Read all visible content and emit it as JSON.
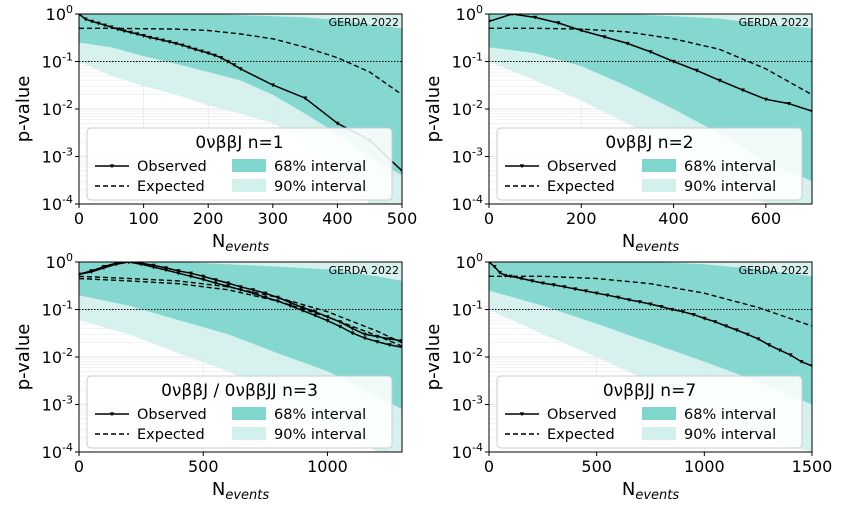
{
  "colors": {
    "band68": "#7fd6cc",
    "band90": "#d3f1ec",
    "observed": "#000000",
    "expected": "#000000",
    "threshold": "#000000"
  },
  "chart_data": [
    {
      "type": "line",
      "title": "",
      "label": "GERDA 2022",
      "legend_title": "0νββJ n=1",
      "xlabel": "N",
      "xlabel_sub": "events",
      "ylabel": "p-value",
      "xlim": [
        0,
        500
      ],
      "ylim": [
        0.0001,
        1
      ],
      "yscale": "log",
      "xticks": [
        "0",
        "100",
        "200",
        "300",
        "400",
        "500"
      ],
      "xtick_values": [
        0,
        100,
        200,
        300,
        400,
        500
      ],
      "yticks": [
        "10",
        "10",
        "10",
        "10",
        "10"
      ],
      "ytick_exponents": [
        "0",
        "-1",
        "-2",
        "-3",
        "-4"
      ],
      "threshold": 0.1,
      "legend": {
        "observed": "Observed",
        "expected": "Expected",
        "band68": "68% interval",
        "band90": "90% interval"
      },
      "observed": {
        "x": [
          0,
          10,
          20,
          30,
          40,
          50,
          60,
          70,
          80,
          90,
          100,
          110,
          120,
          130,
          140,
          150,
          160,
          170,
          180,
          190,
          200,
          210,
          220,
          230,
          240,
          250,
          300,
          350,
          400,
          450,
          500
        ],
        "y": [
          1.0,
          0.78,
          0.7,
          0.64,
          0.58,
          0.53,
          0.48,
          0.44,
          0.41,
          0.38,
          0.35,
          0.32,
          0.3,
          0.28,
          0.26,
          0.24,
          0.22,
          0.2,
          0.18,
          0.165,
          0.15,
          0.135,
          0.12,
          0.1,
          0.085,
          0.07,
          0.032,
          0.017,
          0.005,
          0.0022,
          0.0005
        ]
      },
      "expected": {
        "x": [
          0,
          50,
          100,
          150,
          200,
          250,
          300,
          350,
          400,
          450,
          500
        ],
        "y": [
          0.5,
          0.5,
          0.49,
          0.48,
          0.45,
          0.38,
          0.3,
          0.2,
          0.12,
          0.06,
          0.02
        ]
      },
      "band68": {
        "x": [
          0,
          50,
          100,
          150,
          200,
          250,
          300,
          350,
          400,
          450,
          500
        ],
        "upper": [
          1.0,
          1.0,
          1.0,
          1.0,
          1.0,
          0.95,
          0.9,
          0.85,
          0.75,
          0.6,
          0.5
        ],
        "lower": [
          0.25,
          0.2,
          0.13,
          0.09,
          0.06,
          0.04,
          0.02,
          0.008,
          0.003,
          0.001,
          0.0004
        ]
      },
      "band90": {
        "x": [
          0,
          50,
          100,
          150,
          200,
          250,
          300,
          350,
          400,
          450,
          500
        ],
        "upper": [
          1.0,
          1.0,
          1.0,
          1.0,
          1.0,
          1.0,
          1.0,
          1.0,
          1.0,
          1.0,
          1.0
        ],
        "lower": [
          0.1,
          0.05,
          0.03,
          0.02,
          0.012,
          0.008,
          0.005,
          0.002,
          0.0005,
          0.0001,
          0.0001
        ]
      }
    },
    {
      "type": "line",
      "title": "",
      "label": "GERDA 2022",
      "legend_title": "0νββJ n=2",
      "xlabel": "N",
      "xlabel_sub": "events",
      "ylabel": "p-value",
      "xlim": [
        0,
        700
      ],
      "ylim": [
        0.0001,
        1
      ],
      "yscale": "log",
      "xticks": [
        "0",
        "200",
        "400",
        "600"
      ],
      "xtick_values": [
        0,
        200,
        400,
        600
      ],
      "yticks": [
        "10",
        "10",
        "10",
        "10",
        "10"
      ],
      "ytick_exponents": [
        "0",
        "-1",
        "-2",
        "-3",
        "-4"
      ],
      "threshold": 0.1,
      "legend": {
        "observed": "Observed",
        "expected": "Expected",
        "band68": "68% interval",
        "band90": "90% interval"
      },
      "observed": {
        "x": [
          0,
          50,
          100,
          150,
          200,
          250,
          300,
          350,
          400,
          450,
          500,
          550,
          600,
          650,
          700
        ],
        "y": [
          0.7,
          1.0,
          0.85,
          0.65,
          0.45,
          0.33,
          0.24,
          0.16,
          0.1,
          0.065,
          0.04,
          0.025,
          0.016,
          0.013,
          0.009
        ]
      },
      "expected": {
        "x": [
          0,
          100,
          200,
          300,
          400,
          500,
          600,
          700
        ],
        "y": [
          0.5,
          0.5,
          0.48,
          0.42,
          0.3,
          0.18,
          0.07,
          0.02
        ]
      },
      "band68": {
        "x": [
          0,
          100,
          200,
          300,
          400,
          500,
          600,
          700
        ],
        "upper": [
          1.0,
          1.0,
          1.0,
          1.0,
          0.9,
          0.8,
          0.6,
          0.5
        ],
        "lower": [
          0.2,
          0.15,
          0.08,
          0.03,
          0.01,
          0.003,
          0.0008,
          0.0003
        ]
      },
      "band90": {
        "x": [
          0,
          100,
          200,
          300,
          400,
          500,
          600,
          700
        ],
        "upper": [
          1.0,
          1.0,
          1.0,
          1.0,
          1.0,
          1.0,
          1.0,
          1.0
        ],
        "lower": [
          0.1,
          0.04,
          0.015,
          0.005,
          0.0015,
          0.0004,
          0.0001,
          0.0001
        ]
      }
    },
    {
      "type": "line",
      "title": "",
      "label": "GERDA 2022",
      "legend_title": "0νββJ / 0νββJJ n=3",
      "xlabel": "N",
      "xlabel_sub": "events",
      "ylabel": "p-value",
      "xlim": [
        0,
        1300
      ],
      "ylim": [
        0.0001,
        1
      ],
      "yscale": "log",
      "xticks": [
        "0",
        "500",
        "1000"
      ],
      "xtick_values": [
        0,
        500,
        1000
      ],
      "yticks": [
        "10",
        "10",
        "10",
        "10",
        "10"
      ],
      "ytick_exponents": [
        "0",
        "-1",
        "-2",
        "-3",
        "-4"
      ],
      "threshold": 0.1,
      "legend": {
        "observed": "Observed",
        "expected": "Expected",
        "band68": "68% interval",
        "band90": "90% interval"
      },
      "observed": [
        {
          "x": [
            0,
            50,
            100,
            150,
            200,
            250,
            300,
            350,
            400,
            450,
            500,
            550,
            600,
            650,
            700,
            750,
            800,
            850,
            900,
            950,
            1000,
            1050,
            1100,
            1150,
            1200,
            1250,
            1300
          ],
          "y": [
            0.55,
            0.65,
            0.8,
            0.95,
            1.0,
            0.95,
            0.85,
            0.75,
            0.65,
            0.58,
            0.5,
            0.42,
            0.36,
            0.3,
            0.26,
            0.22,
            0.18,
            0.14,
            0.11,
            0.09,
            0.07,
            0.055,
            0.04,
            0.03,
            0.027,
            0.024,
            0.022
          ]
        },
        {
          "x": [
            0,
            50,
            100,
            150,
            200,
            250,
            300,
            350,
            400,
            450,
            500,
            550,
            600,
            650,
            700,
            750,
            800,
            850,
            900,
            950,
            1000,
            1050,
            1100,
            1150,
            1200,
            1250,
            1300
          ],
          "y": [
            0.55,
            0.62,
            0.75,
            0.9,
            1.0,
            0.9,
            0.78,
            0.68,
            0.58,
            0.5,
            0.43,
            0.36,
            0.31,
            0.26,
            0.22,
            0.18,
            0.15,
            0.12,
            0.095,
            0.075,
            0.058,
            0.044,
            0.032,
            0.025,
            0.021,
            0.018,
            0.016
          ]
        }
      ],
      "expected": [
        {
          "x": [
            0,
            200,
            400,
            600,
            800,
            1000,
            1200,
            1300
          ],
          "y": [
            0.5,
            0.45,
            0.4,
            0.3,
            0.18,
            0.09,
            0.035,
            0.02
          ]
        },
        {
          "x": [
            0,
            200,
            400,
            600,
            800,
            1000,
            1200,
            1300
          ],
          "y": [
            0.45,
            0.4,
            0.35,
            0.26,
            0.15,
            0.07,
            0.028,
            0.017
          ]
        }
      ],
      "band68": {
        "x": [
          0,
          200,
          400,
          600,
          800,
          1000,
          1200,
          1300
        ],
        "upper": [
          1.0,
          1.0,
          1.0,
          0.9,
          0.8,
          0.7,
          0.5,
          0.4
        ],
        "lower": [
          0.2,
          0.12,
          0.06,
          0.03,
          0.012,
          0.005,
          0.0015,
          0.0008
        ]
      },
      "band90": {
        "x": [
          0,
          200,
          400,
          600,
          800,
          1000,
          1200,
          1300
        ],
        "upper": [
          1.0,
          1.0,
          1.0,
          1.0,
          1.0,
          1.0,
          1.0,
          1.0
        ],
        "lower": [
          0.06,
          0.03,
          0.012,
          0.005,
          0.0015,
          0.0004,
          0.0001,
          0.0001
        ]
      }
    },
    {
      "type": "line",
      "title": "",
      "label": "GERDA 2022",
      "legend_title": "0νββJJ n=7",
      "xlabel": "N",
      "xlabel_sub": "events",
      "ylabel": "p-value",
      "xlim": [
        0,
        1500
      ],
      "ylim": [
        0.0001,
        1
      ],
      "yscale": "log",
      "xticks": [
        "0",
        "500",
        "1000",
        "1500"
      ],
      "xtick_values": [
        0,
        500,
        1000,
        1500
      ],
      "yticks": [
        "10",
        "10",
        "10",
        "10",
        "10"
      ],
      "ytick_exponents": [
        "0",
        "-1",
        "-2",
        "-3",
        "-4"
      ],
      "threshold": 0.1,
      "legend": {
        "observed": "Observed",
        "expected": "Expected",
        "band68": "68% interval",
        "band90": "90% interval"
      },
      "observed": {
        "x": [
          0,
          25,
          50,
          75,
          100,
          150,
          200,
          250,
          300,
          350,
          400,
          450,
          500,
          550,
          600,
          650,
          700,
          750,
          800,
          850,
          900,
          950,
          1000,
          1050,
          1100,
          1150,
          1200,
          1250,
          1300,
          1350,
          1400,
          1450,
          1500
        ],
        "y": [
          1.0,
          0.8,
          0.6,
          0.52,
          0.5,
          0.45,
          0.4,
          0.36,
          0.33,
          0.3,
          0.27,
          0.245,
          0.22,
          0.2,
          0.18,
          0.16,
          0.145,
          0.13,
          0.115,
          0.1,
          0.09,
          0.078,
          0.065,
          0.055,
          0.045,
          0.037,
          0.03,
          0.024,
          0.018,
          0.014,
          0.011,
          0.008,
          0.0065
        ]
      },
      "expected": {
        "x": [
          0,
          250,
          500,
          750,
          1000,
          1250,
          1500
        ],
        "y": [
          0.5,
          0.5,
          0.45,
          0.35,
          0.22,
          0.11,
          0.045
        ]
      },
      "band68": {
        "x": [
          0,
          250,
          500,
          750,
          1000,
          1250,
          1500
        ],
        "upper": [
          1.0,
          1.0,
          1.0,
          1.0,
          0.9,
          0.7,
          0.5
        ],
        "lower": [
          0.25,
          0.12,
          0.05,
          0.02,
          0.008,
          0.003,
          0.001
        ]
      },
      "band90": {
        "x": [
          0,
          250,
          500,
          750,
          1000,
          1250,
          1500
        ],
        "upper": [
          1.0,
          1.0,
          1.0,
          1.0,
          1.0,
          1.0,
          1.0
        ],
        "lower": [
          0.1,
          0.03,
          0.01,
          0.003,
          0.0008,
          0.0002,
          0.0001
        ]
      }
    }
  ]
}
